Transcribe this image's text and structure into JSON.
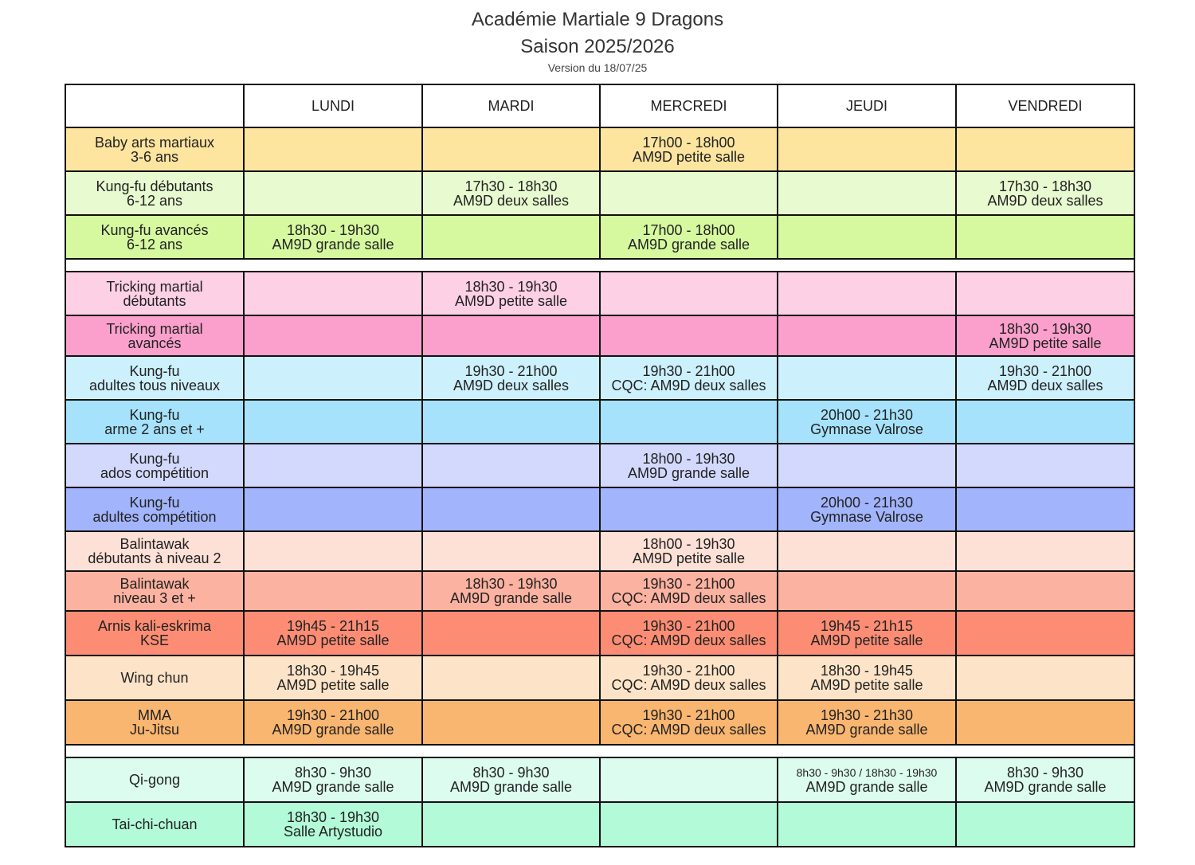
{
  "header": {
    "title_line1": "Académie Martiale 9 Dragons",
    "title_line2": "Saison 2025/2026",
    "version": "Version du 18/07/25"
  },
  "days": [
    "LUNDI",
    "MARDI",
    "MERCREDI",
    "JEUDI",
    "VENDREDI"
  ],
  "groups": [
    {
      "rows": [
        {
          "color": "#fde49f",
          "label": [
            "Baby arts martiaux",
            "3-6 ans"
          ],
          "cells": [
            null,
            null,
            [
              "17h00 - 18h00",
              "AM9D petite salle"
            ],
            null,
            null
          ]
        },
        {
          "color": "#e8fad0",
          "label": [
            "Kung-fu débutants",
            "6-12 ans"
          ],
          "cells": [
            null,
            [
              "17h30 - 18h30",
              "AM9D deux salles"
            ],
            null,
            null,
            [
              "17h30 - 18h30",
              "AM9D deux salles"
            ]
          ]
        },
        {
          "color": "#d6f9a0",
          "label": [
            "Kung-fu avancés",
            "6-12 ans"
          ],
          "cells": [
            [
              "18h30 - 19h30",
              "AM9D grande salle"
            ],
            null,
            [
              "17h00 - 18h00",
              "AM9D grande salle"
            ],
            null,
            null
          ]
        }
      ]
    },
    {
      "rows": [
        {
          "color": "#fdd0e6",
          "label": [
            "Tricking martial",
            "débutants"
          ],
          "cells": [
            null,
            [
              "18h30 - 19h30",
              "AM9D petite salle"
            ],
            null,
            null,
            null
          ]
        },
        {
          "color": "#fba0cc",
          "label": [
            "Tricking martial",
            "avancés"
          ],
          "cells": [
            null,
            null,
            null,
            null,
            [
              "18h30 - 19h30",
              "AM9D petite salle"
            ]
          ]
        },
        {
          "color": "#cdf0fd",
          "label": [
            "Kung-fu",
            "adultes tous niveaux"
          ],
          "cells": [
            null,
            [
              "19h30 - 21h00",
              "AM9D deux salles"
            ],
            [
              "19h30 - 21h00",
              "CQC: AM9D deux salles"
            ],
            null,
            [
              "19h30 - 21h00",
              "AM9D deux salles"
            ]
          ]
        },
        {
          "color": "#a6e2fb",
          "label": [
            "Kung-fu",
            "arme 2 ans et +"
          ],
          "cells": [
            null,
            null,
            null,
            [
              "20h00 - 21h30",
              "Gymnase Valrose"
            ],
            null
          ]
        },
        {
          "color": "#d2d9fd",
          "label": [
            "Kung-fu",
            "ados compétition"
          ],
          "cells": [
            null,
            null,
            [
              "18h00 - 19h30",
              "AM9D grande salle"
            ],
            null,
            null
          ]
        },
        {
          "color": "#a2b4fb",
          "label": [
            "Kung-fu",
            "adultes compétition"
          ],
          "cells": [
            null,
            null,
            null,
            [
              "20h00 - 21h30",
              "Gymnase Valrose"
            ],
            null
          ]
        },
        {
          "color": "#fde0d6",
          "label": [
            "Balintawak",
            "débutants à niveau 2"
          ],
          "cells": [
            null,
            null,
            [
              "18h00 - 19h30",
              "AM9D petite salle"
            ],
            null,
            null
          ]
        },
        {
          "color": "#fcb2a0",
          "label": [
            "Balintawak",
            "niveau 3 et +"
          ],
          "cells": [
            null,
            [
              "18h30 - 19h30",
              "AM9D grande salle"
            ],
            [
              "19h30 - 21h00",
              "CQC: AM9D deux salles"
            ],
            null,
            null
          ]
        },
        {
          "color": "#fc8d74",
          "label": [
            "Arnis kali-eskrima",
            "KSE"
          ],
          "cells": [
            [
              "19h45 - 21h15",
              "AM9D petite salle"
            ],
            null,
            [
              "19h30 - 21h00",
              "CQC: AM9D deux salles"
            ],
            [
              "19h45 - 21h15",
              "AM9D petite salle"
            ],
            null
          ]
        },
        {
          "color": "#fde4c8",
          "label": [
            "Wing chun"
          ],
          "cells": [
            [
              "18h30 - 19h45",
              "AM9D petite salle"
            ],
            null,
            [
              "19h30 - 21h00",
              "CQC: AM9D deux salles"
            ],
            [
              "18h30 - 19h45",
              "AM9D petite salle"
            ],
            null
          ]
        },
        {
          "color": "#f9b670",
          "label": [
            "MMA",
            "Ju-Jitsu"
          ],
          "cells": [
            [
              "19h30 - 21h00",
              "AM9D grande salle"
            ],
            null,
            [
              "19h30 - 21h00",
              "CQC: AM9D deux salles"
            ],
            [
              "19h30 - 21h30",
              "AM9D grande salle"
            ],
            null
          ]
        }
      ]
    },
    {
      "rows": [
        {
          "color": "#dcfcef",
          "label": [
            "Qi-gong"
          ],
          "cells": [
            [
              "8h30 - 9h30",
              "AM9D grande salle"
            ],
            [
              "8h30 - 9h30",
              "AM9D grande salle"
            ],
            null,
            [
              "8h30 - 9h30 / 18h30 - 19h30",
              "AM9D grande salle"
            ],
            [
              "8h30 - 9h30",
              "AM9D grande salle"
            ]
          ]
        },
        {
          "color": "#b2fad8",
          "label": [
            "Tai-chi-chuan"
          ],
          "cells": [
            [
              "18h30 - 19h30",
              "Salle Artystudio"
            ],
            null,
            null,
            null,
            null
          ]
        }
      ]
    }
  ]
}
